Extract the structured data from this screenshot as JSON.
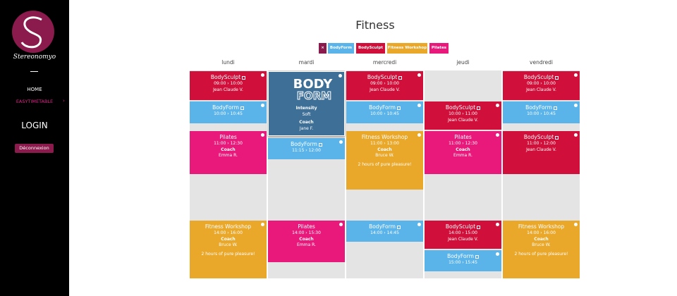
{
  "sidebar": {
    "brand": "Stereonomyo",
    "nav": [
      "HOME",
      "EASYTIMETABLE"
    ],
    "nav_arrow": "›",
    "login": "LOGIN",
    "logout": "Déconnexion"
  },
  "header": {
    "title": "Fitness"
  },
  "filters": [
    "×",
    "BodyForm",
    "BodySculpt",
    "Fitness Workshop",
    "Pilates"
  ],
  "days": [
    {
      "name": "lundi",
      "events": [
        {
          "title": "BodySculpt",
          "time": "09:00 › 10:00",
          "coach": "Jean Claude V."
        },
        {
          "title": "BodyForm",
          "time": "10:00 › 10:45"
        },
        {
          "title": "Pilates",
          "time": "11:00 › 12:30",
          "coach_label": "Coach",
          "coach": "Emma R."
        },
        {
          "title": "Fitness Workshop",
          "time": "14:00 › 16:00",
          "coach_label": "Coach",
          "coach": "Bruce W.",
          "note": "2 hours of pure pleasure!"
        }
      ]
    },
    {
      "name": "mardi",
      "popup": {
        "logo_top": "BODY",
        "logo_bottom": "FORM",
        "intensity_label": "Intensity",
        "intensity": "Soft",
        "coach_label": "Coach",
        "coach": "Jane F."
      },
      "events": [
        {
          "title": "BodyForm",
          "time": "11:15 › 12:00"
        },
        {
          "title": "Pilates",
          "time": "14:00 › 15:30",
          "coach_label": "Coach",
          "coach": "Emma R."
        }
      ]
    },
    {
      "name": "mercredi",
      "events": [
        {
          "title": "BodySculpt",
          "time": "09:00 › 10:00",
          "coach": "Jean Claude V."
        },
        {
          "title": "BodyForm",
          "time": "10:00 › 10:45"
        },
        {
          "title": "Fitness Workshop",
          "time": "11:00 › 13:00",
          "coach_label": "Coach",
          "coach": "Bruce W.",
          "note": "2 hours of pure pleasure!"
        },
        {
          "title": "BodyForm",
          "time": "14:00 › 14:45"
        }
      ]
    },
    {
      "name": "jeudi",
      "events": [
        {
          "title": "BodySculpt",
          "time": "10:00 › 11:00",
          "coach": "Jean Claude V."
        },
        {
          "title": "Pilates",
          "time": "11:00 › 12:30",
          "coach_label": "Coach",
          "coach": "Emma R."
        },
        {
          "title": "BodySculpt",
          "time": "14:00 › 15:00",
          "coach": "Jean Claude V."
        },
        {
          "title": "BodyForm",
          "time": "15:00 › 15:45"
        }
      ]
    },
    {
      "name": "vendredi",
      "events": [
        {
          "title": "BodySculpt",
          "time": "09:00 › 10:00",
          "coach": "Jean Claude V."
        },
        {
          "title": "BodyForm",
          "time": "10:00 › 10:45"
        },
        {
          "title": "BodySculpt",
          "time": "11:00 › 12:00",
          "coach": "Jean Claude V."
        },
        {
          "title": "Fitness Workshop",
          "time": "14:00 › 16:00",
          "coach_label": "Coach",
          "coach": "Bruce W.",
          "note": "2 hours of pure pleasure!"
        }
      ]
    }
  ]
}
